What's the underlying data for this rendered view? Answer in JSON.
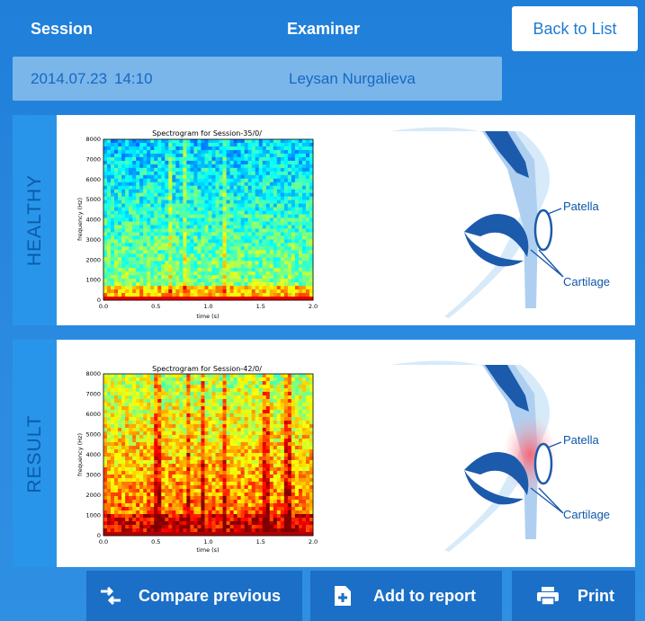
{
  "header": {
    "session_label": "Session",
    "examiner_label": "Examiner",
    "back_button": "Back to List"
  },
  "session": {
    "date": "2014.07.23",
    "time": "14:10",
    "examiner": "Leysan Nurgalieva"
  },
  "panels": [
    {
      "side_label": "HEALTHY",
      "spectrogram_title": "Spectrogram for Session-35/0/",
      "knee": {
        "patella_label": "Patella",
        "cartilage_label": "Cartilage",
        "inflamed": false
      }
    },
    {
      "side_label": "RESULT",
      "spectrogram_title": "Spectrogram for Session-42/0/",
      "knee": {
        "patella_label": "Patella",
        "cartilage_label": "Cartilage",
        "inflamed": true
      }
    }
  ],
  "spectrogram_axes": {
    "xlabel": "time (s)",
    "ylabel": "frequency (Hz)",
    "x_ticks": [
      "0.0",
      "0.5",
      "1.0",
      "1.5",
      "2.0"
    ],
    "y_ticks": [
      "0",
      "1000",
      "2000",
      "3000",
      "4000",
      "5000",
      "6000",
      "7000",
      "8000"
    ]
  },
  "toolbar": {
    "compare_label": "Compare previous",
    "add_label": "Add to report",
    "print_label": "Print"
  },
  "colors": {
    "accent": "#2a8ae0",
    "button": "#1b6fc6",
    "side_bar": "#2895ea",
    "side_text": "#0b5aa8"
  },
  "icons": {
    "compare": "swap-arrows-icon",
    "add": "add-document-icon",
    "print": "printer-icon"
  }
}
